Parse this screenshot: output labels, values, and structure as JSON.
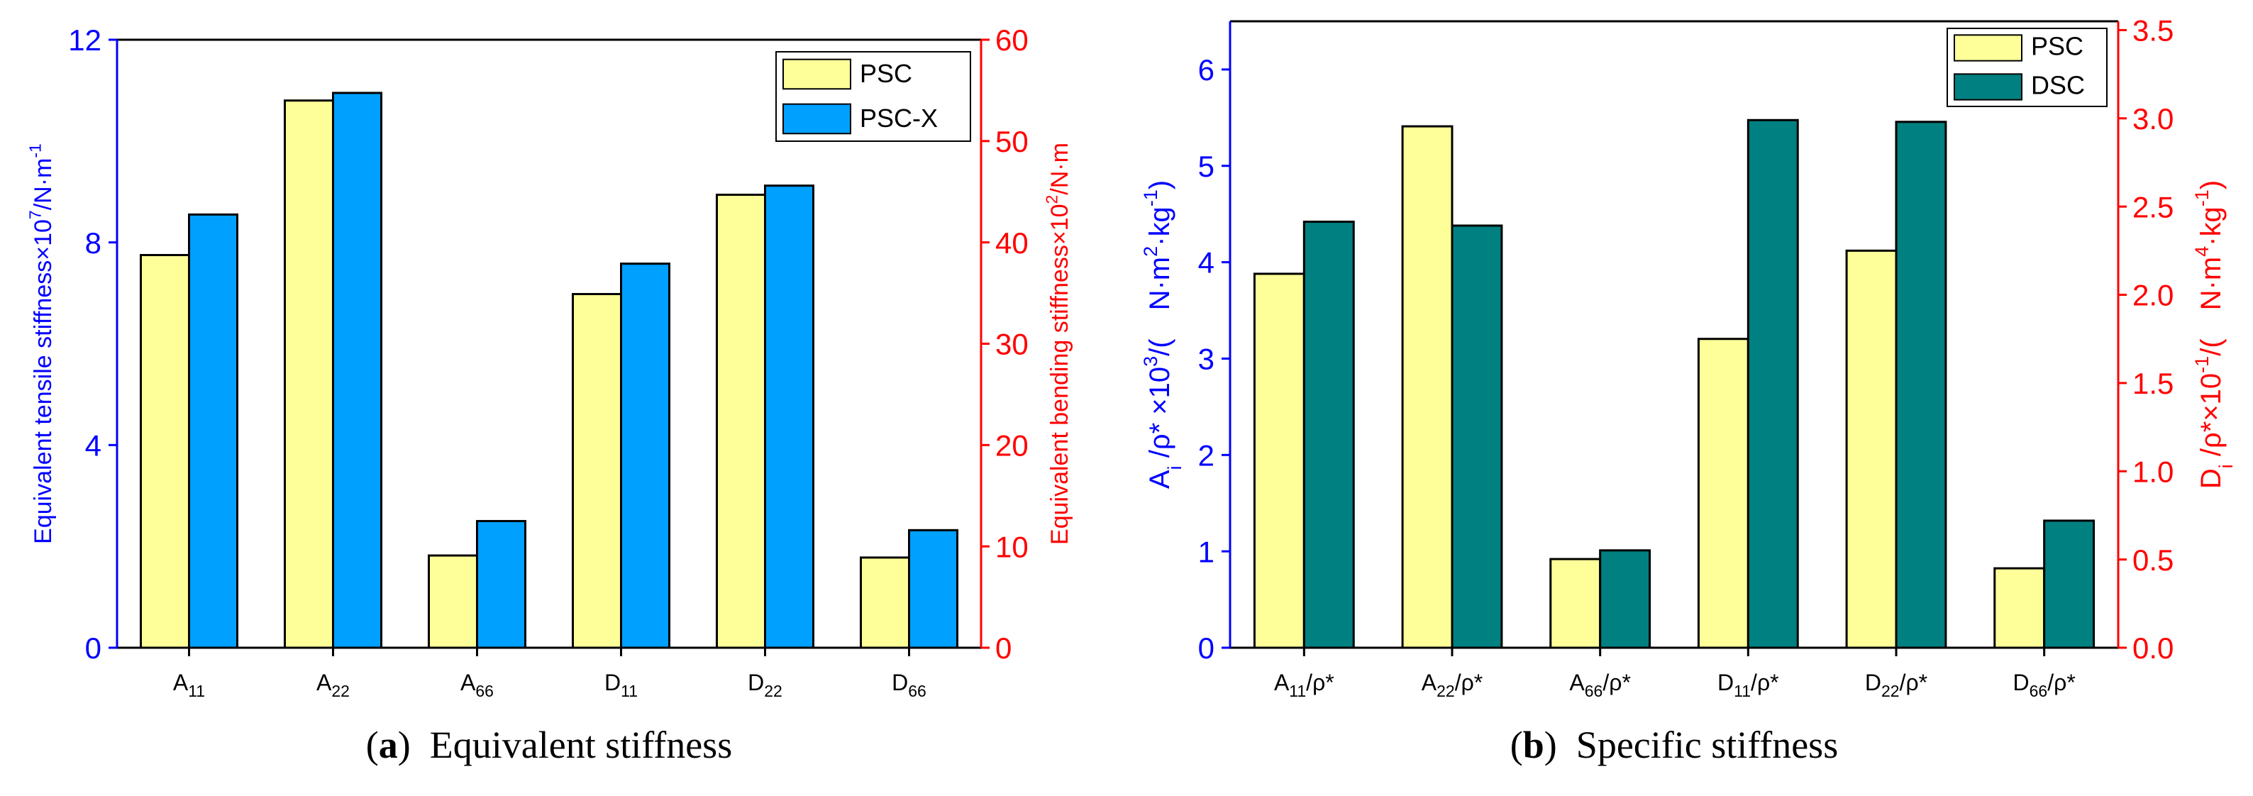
{
  "colors": {
    "left_axis": "#0000ff",
    "right_axis": "#ff0000",
    "psc": "#ffff99",
    "psc_x": "#00a0ff",
    "dsc": "#008080",
    "frame": "#000000"
  },
  "chart_data": [
    {
      "id": "a",
      "type": "bar",
      "categories": [
        {
          "base": "A",
          "sub": "11",
          "suffix": ""
        },
        {
          "base": "A",
          "sub": "22",
          "suffix": ""
        },
        {
          "base": "A",
          "sub": "66",
          "suffix": ""
        },
        {
          "base": "D",
          "sub": "11",
          "suffix": ""
        },
        {
          "base": "D",
          "sub": "22",
          "suffix": ""
        },
        {
          "base": "D",
          "sub": "66",
          "suffix": ""
        }
      ],
      "series": [
        {
          "name": "PSC",
          "values": [
            7.75,
            10.8,
            1.82,
            34.9,
            44.7,
            8.9
          ],
          "color_key": "psc"
        },
        {
          "name": "PSC-X",
          "values": [
            8.55,
            10.95,
            2.5,
            37.9,
            45.6,
            11.6
          ],
          "color_key": "psc_x"
        }
      ],
      "axis_assignment": [
        "left",
        "left",
        "left",
        "right",
        "right",
        "right"
      ],
      "left_axis": {
        "ylim": [
          0,
          12
        ],
        "ticks": [
          "0",
          "4",
          "8",
          "12"
        ],
        "tick_values": [
          0,
          4,
          8,
          12
        ],
        "label_parts": [
          {
            "text": "Equivalent tensile stiffness×10",
            "sup": false
          },
          {
            "text": "7",
            "sup": true
          },
          {
            "text": "/N·m",
            "sup": false
          },
          {
            "text": "-1",
            "sup": true
          }
        ]
      },
      "right_axis": {
        "ylim": [
          0,
          60
        ],
        "ticks": [
          "0",
          "10",
          "20",
          "30",
          "40",
          "50",
          "60"
        ],
        "tick_values": [
          0,
          10,
          20,
          30,
          40,
          50,
          60
        ],
        "label_parts": [
          {
            "text": "Equivalent bending stiffness×10",
            "sup": false
          },
          {
            "text": "2",
            "sup": true
          },
          {
            "text": "/N·m",
            "sup": false
          }
        ]
      },
      "legend": {
        "position": "top-right",
        "entries": [
          "PSC",
          "PSC-X"
        ]
      },
      "caption": {
        "label": "(a)",
        "text": "Equivalent stiffness"
      }
    },
    {
      "id": "b",
      "type": "bar",
      "categories": [
        {
          "base": "A",
          "sub": "11",
          "suffix": "/ρ*"
        },
        {
          "base": "A",
          "sub": "22",
          "suffix": "/ρ*"
        },
        {
          "base": "A",
          "sub": "66",
          "suffix": "/ρ*"
        },
        {
          "base": "D",
          "sub": "11",
          "suffix": "/ρ*"
        },
        {
          "base": "D",
          "sub": "22",
          "suffix": "/ρ*"
        },
        {
          "base": "D",
          "sub": "66",
          "suffix": "/ρ*"
        }
      ],
      "series": [
        {
          "name": "PSC",
          "values": [
            3.88,
            5.41,
            0.92,
            1.75,
            2.25,
            0.45
          ],
          "color_key": "psc"
        },
        {
          "name": "DSC",
          "values": [
            4.42,
            4.38,
            1.01,
            2.99,
            2.98,
            0.72
          ],
          "color_key": "dsc"
        }
      ],
      "axis_assignment": [
        "left",
        "left",
        "left",
        "right",
        "right",
        "right"
      ],
      "left_axis": {
        "ylim": [
          0,
          6.5
        ],
        "ticks": [
          "0",
          "1",
          "2",
          "3",
          "4",
          "5",
          "6"
        ],
        "tick_values": [
          0,
          1,
          2,
          3,
          4,
          5,
          6
        ],
        "label_parts": [
          {
            "text": "A",
            "sup": false
          },
          {
            "text": "i",
            "sub": true
          },
          {
            "text": " /ρ* ×10",
            "sup": false
          },
          {
            "text": "3",
            "sup": true
          },
          {
            "text": "/(　N·m",
            "sup": false
          },
          {
            "text": "2",
            "sup": true
          },
          {
            "text": "·kg",
            "sup": false
          },
          {
            "text": "-1",
            "sup": true
          },
          {
            "text": ")",
            "sup": false
          }
        ]
      },
      "right_axis": {
        "ylim": [
          0,
          3.55
        ],
        "ticks": [
          "0.0",
          "0.5",
          "1.0",
          "1.5",
          "2.0",
          "2.5",
          "3.0",
          "3.5"
        ],
        "tick_values": [
          0,
          0.5,
          1.0,
          1.5,
          2.0,
          2.5,
          3.0,
          3.5
        ],
        "label_parts": [
          {
            "text": "D",
            "sup": false
          },
          {
            "text": "i",
            "sub": true
          },
          {
            "text": " /ρ*×10",
            "sup": false
          },
          {
            "text": "-1",
            "sup": true
          },
          {
            "text": "/(　N·m",
            "sup": false
          },
          {
            "text": "4",
            "sup": true
          },
          {
            "text": "·kg",
            "sup": false
          },
          {
            "text": "-1",
            "sup": true
          },
          {
            "text": ")",
            "sup": false
          }
        ]
      },
      "legend": {
        "position": "top-right",
        "entries": [
          "PSC",
          "DSC"
        ]
      },
      "caption": {
        "label": "(b)",
        "text": "Specific stiffness"
      }
    }
  ]
}
